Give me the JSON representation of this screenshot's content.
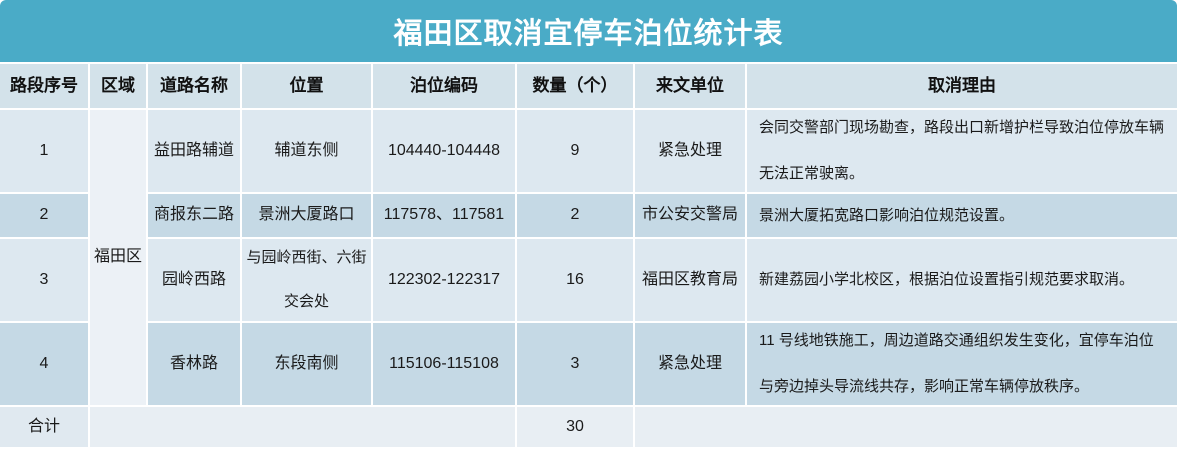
{
  "title": "福田区取消宜停车泊位统计表",
  "colors": {
    "title_bar": "#4aabc7",
    "header_bg": "#d3e2ea",
    "band_light": "#dde8f0",
    "band_dark": "#c5d9e5",
    "merged_region_bg": "#ecf1f6",
    "total_row_bg": "#e8eef3"
  },
  "table": {
    "columns": {
      "seq": "路段序号",
      "region": "区域",
      "road": "道路名称",
      "location": "位置",
      "code": "泊位编码",
      "qty": "数量（个）",
      "unit": "来文单位",
      "reason": "取消理由"
    },
    "region_value": "福田区",
    "rows": [
      {
        "seq": "1",
        "road": "益田路辅道",
        "location": "辅道东侧",
        "code": "104440-104448",
        "qty": "9",
        "unit": "紧急处理",
        "reason": "会同交警部门现场勘查，路段出口新增护栏导致泊位停放车辆无法正常驶离。"
      },
      {
        "seq": "2",
        "road": "商报东二路",
        "location": "景洲大厦路口",
        "code": "117578、117581",
        "qty": "2",
        "unit": "市公安交警局",
        "reason": "景洲大厦拓宽路口影响泊位规范设置。"
      },
      {
        "seq": "3",
        "road": "园岭西路",
        "location": "与园岭西街、六街交会处",
        "code": "122302-122317",
        "qty": "16",
        "unit": "福田区教育局",
        "reason": "新建荔园小学北校区，根据泊位设置指引规范要求取消。"
      },
      {
        "seq": "4",
        "road": "香林路",
        "location": "东段南侧",
        "code": "115106-115108",
        "qty": "3",
        "unit": "紧急处理",
        "reason": "11 号线地铁施工，周边道路交通组织发生变化，宜停车泊位与旁边掉头导流线共存，影响正常车辆停放秩序。"
      }
    ],
    "total": {
      "label": "合计",
      "qty": "30"
    }
  }
}
